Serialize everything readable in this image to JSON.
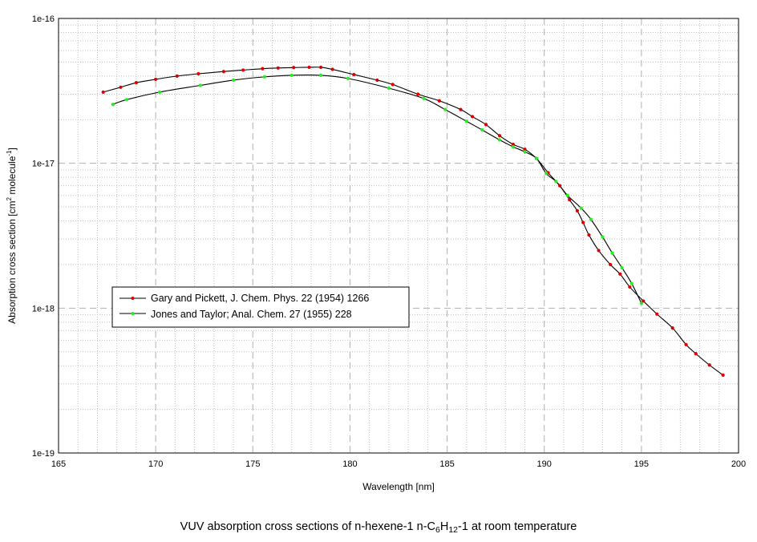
{
  "caption": {
    "prefix": "VUV absorption cross sections of n-hexene-1 n-C",
    "sub1": "6",
    "mid": "H",
    "sub2": "12",
    "suffix": "-1 at room temperature"
  },
  "chart_data": {
    "type": "line",
    "title": "",
    "xlabel": "Wavelength [nm]",
    "ylabel_prefix": "Absorption cross section [cm",
    "ylabel_sup1": "2",
    "ylabel_mid": " molecule",
    "ylabel_sup2": "-1",
    "ylabel_suffix": "]",
    "xlim": [
      165,
      200
    ],
    "ylim": [
      1e-19,
      1e-16
    ],
    "yscale": "log",
    "grid": true,
    "legend_position": "center-left",
    "x_ticks": [
      "165",
      "170",
      "175",
      "180",
      "185",
      "190",
      "195",
      "200"
    ],
    "x_tick_values": [
      165,
      170,
      175,
      180,
      185,
      190,
      195,
      200
    ],
    "y_ticks": [
      "1e-16",
      "1e-17",
      "1e-18",
      "1e-19"
    ],
    "y_tick_values": [
      1e-16,
      1e-17,
      1e-18,
      1e-19
    ],
    "series": [
      {
        "name": "Gary and Pickett, J. Chem. Phys. 22 (1954) 1266",
        "line_color": "#000000",
        "marker_color": "#dd0000",
        "x": [
          167.3,
          168.2,
          169.0,
          170.0,
          171.1,
          172.2,
          173.5,
          174.5,
          175.5,
          176.3,
          177.1,
          177.9,
          178.5,
          179.1,
          180.2,
          181.4,
          182.2,
          183.5,
          184.6,
          185.7,
          186.3,
          187.0,
          187.7,
          188.4,
          189.0,
          189.6,
          190.2,
          190.8,
          191.3,
          191.7,
          192.0,
          192.3,
          192.8,
          193.4,
          193.9,
          194.4,
          195.1,
          195.8,
          196.6,
          197.3,
          197.8,
          198.5,
          199.2
        ],
        "y": [
          3.1e-17,
          3.35e-17,
          3.6e-17,
          3.8e-17,
          4e-17,
          4.15e-17,
          4.3e-17,
          4.4e-17,
          4.5e-17,
          4.55e-17,
          4.58e-17,
          4.6e-17,
          4.6e-17,
          4.45e-17,
          4.1e-17,
          3.75e-17,
          3.5e-17,
          3e-17,
          2.7e-17,
          2.35e-17,
          2.1e-17,
          1.85e-17,
          1.55e-17,
          1.35e-17,
          1.25e-17,
          1.08e-17,
          8.6e-18,
          7e-18,
          5.6e-18,
          4.7e-18,
          3.9e-18,
          3.2e-18,
          2.5e-18,
          2e-18,
          1.72e-18,
          1.4e-18,
          1.12e-18,
          9.1e-19,
          7.3e-19,
          5.6e-19,
          4.85e-19,
          4.05e-19,
          3.45e-19
        ]
      },
      {
        "name": "Jones and Taylor; Anal. Chem. 27 (1955) 228",
        "line_color": "#000000",
        "marker_color": "#22ee22",
        "x": [
          167.8,
          168.5,
          170.2,
          172.3,
          174.0,
          175.6,
          177.0,
          178.5,
          179.9,
          182.0,
          183.8,
          184.9,
          186.0,
          186.8,
          187.7,
          188.4,
          189.0,
          189.6,
          190.1,
          190.6,
          191.2,
          191.9,
          192.4,
          193.0,
          193.5,
          194.0,
          194.5,
          195.0
        ],
        "y": [
          2.55e-17,
          2.75e-17,
          3.1e-17,
          3.45e-17,
          3.75e-17,
          3.95e-17,
          4.05e-17,
          4.05e-17,
          3.85e-17,
          3.3e-17,
          2.8e-17,
          2.35e-17,
          1.95e-17,
          1.7e-17,
          1.45e-17,
          1.3e-17,
          1.2e-17,
          1.08e-17,
          8.5e-18,
          7.5e-18,
          6e-18,
          4.9e-18,
          4.1e-18,
          3.1e-18,
          2.4e-18,
          1.9e-18,
          1.48e-18,
          1.08e-18
        ]
      }
    ]
  }
}
